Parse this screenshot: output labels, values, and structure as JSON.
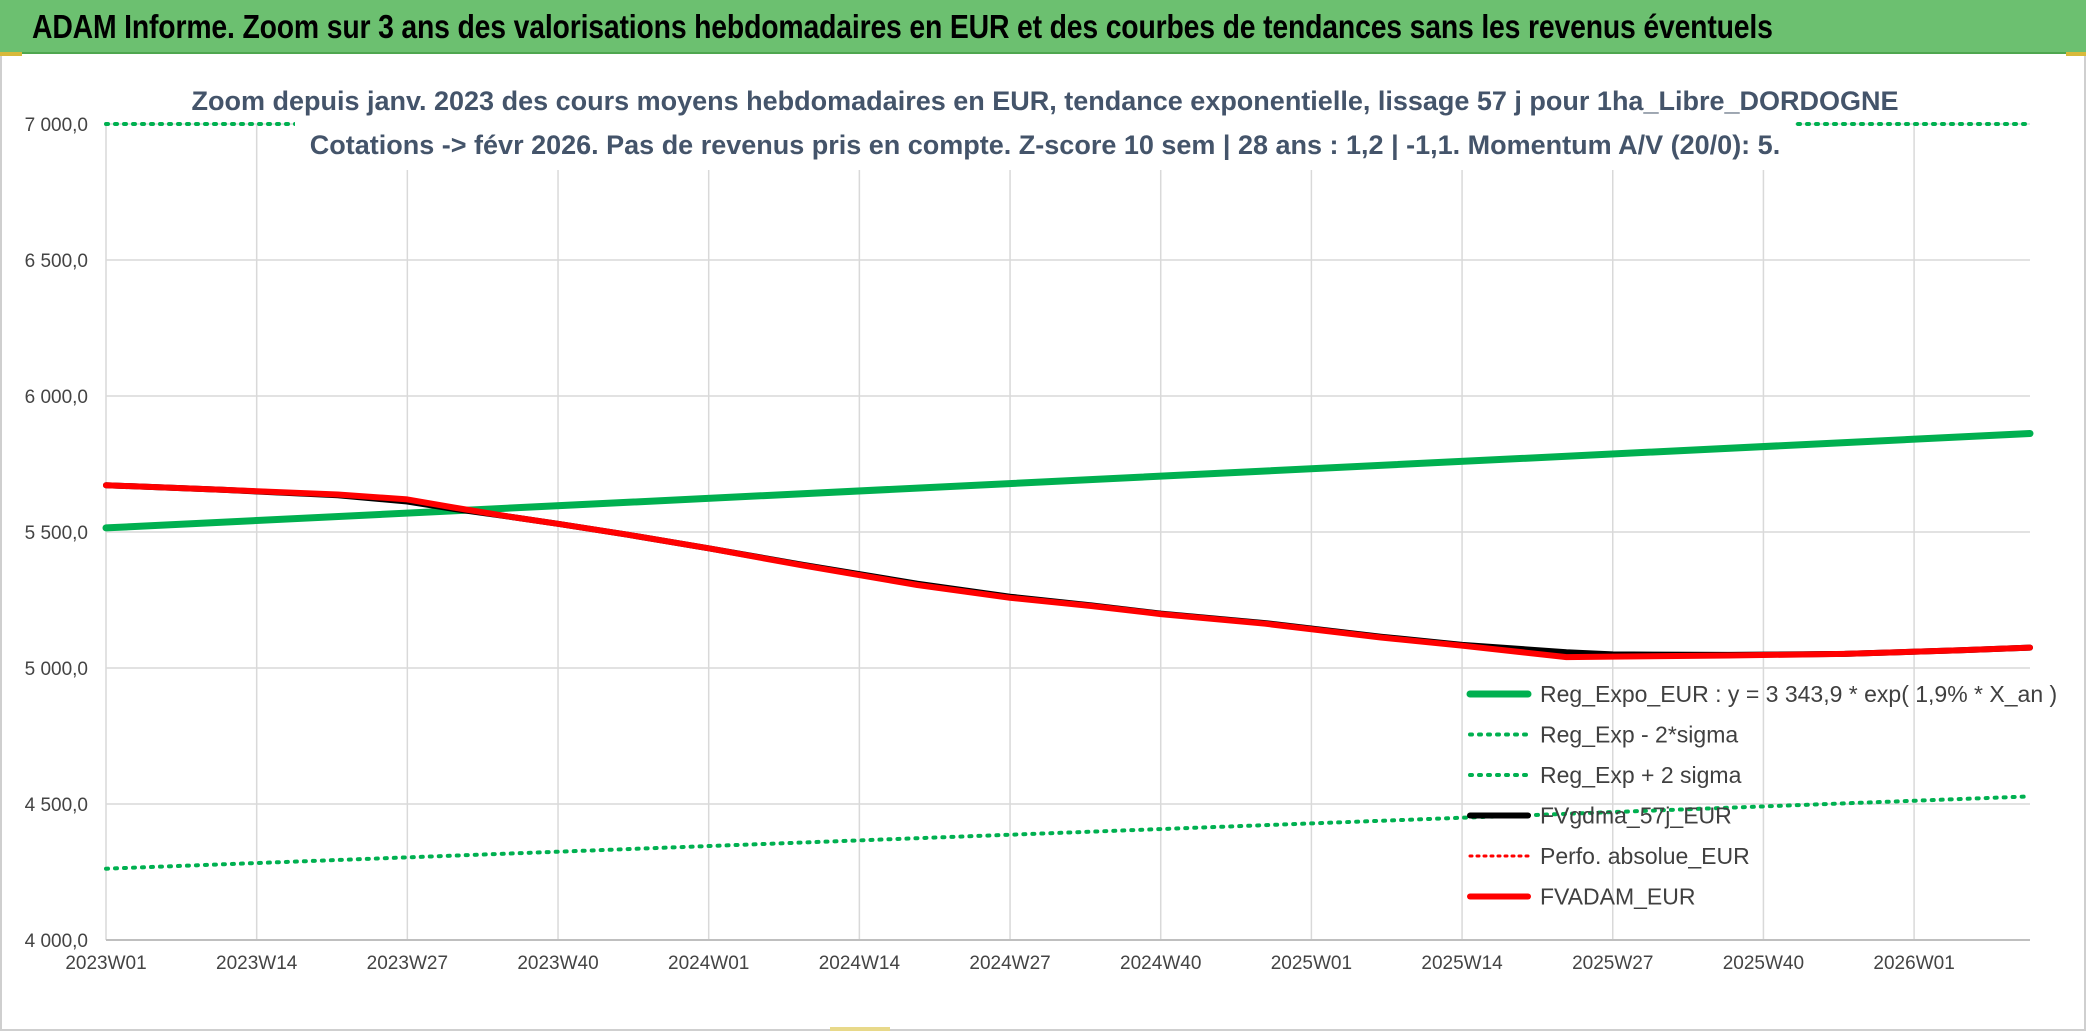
{
  "header": {
    "title": "ADAM Informe. Zoom sur 3 ans des valorisations hebdomadaires en EUR et des courbes de tendances sans les revenus éventuels"
  },
  "colors": {
    "header_bg": "#6cc070",
    "reg_expo": "#00b050",
    "sigma": "#00b050",
    "fvgdma": "#000000",
    "perfo": "#ff0000",
    "fvadam": "#ff0000",
    "grid": "#d9d9d9"
  },
  "chart_data": {
    "type": "line",
    "title_lines": [
      "Zoom depuis janv. 2023 des cours moyens hebdomadaires en EUR, tendance exponentielle, lissage 57 j pour 1ha_Libre_DORDOGNE",
      "Cotations -> févr 2026. Pas de revenus pris en compte. Z-score 10 sem | 28 ans : 1,2 | -1,1. Momentum A/V (20/0): 5."
    ],
    "ylim": [
      4000,
      7000
    ],
    "y_ticks": [
      4000,
      4500,
      5000,
      5500,
      6000,
      6500,
      7000
    ],
    "y_tick_labels": [
      "4 000,0",
      "4 500,0",
      "5 000,0",
      "5 500,0",
      "6 000,0",
      "6 500,0",
      "7 000,0"
    ],
    "x_range_weeks": [
      0,
      166
    ],
    "x_ticks": [
      0,
      13,
      26,
      39,
      52,
      65,
      78,
      91,
      104,
      117,
      130,
      143,
      156
    ],
    "x_tick_labels": [
      "2023W01",
      "2023W14",
      "2023W27",
      "2023W40",
      "2024W01",
      "2024W14",
      "2024W27",
      "2024W40",
      "2025W01",
      "2025W14",
      "2025W27",
      "2025W40",
      "2026W01"
    ],
    "series": [
      {
        "name": "Reg_Expo_EUR : y = 3 343,9 * exp( 1,9% *  X_an )",
        "style": "solid-thick",
        "x": [
          0,
          166
        ],
        "y": [
          5515,
          5862
        ]
      },
      {
        "name": "Reg_Exp - 2*sigma",
        "style": "dotted",
        "x": [
          0,
          166
        ],
        "y": [
          4262,
          4528
        ]
      },
      {
        "name": "Reg_Exp + 2 sigma",
        "style": "dotted",
        "x": [
          0,
          166
        ],
        "y": [
          7000,
          7000
        ]
      },
      {
        "name": "FVgdma_57j_EUR",
        "style": "solid-black",
        "x": [
          0,
          10,
          20,
          26,
          30,
          35,
          39,
          45,
          52,
          60,
          70,
          78,
          85,
          91,
          100,
          110,
          117,
          126,
          130,
          140,
          150,
          160,
          166
        ],
        "y": [
          5672,
          5655,
          5635,
          5612,
          5585,
          5555,
          5530,
          5490,
          5440,
          5380,
          5310,
          5262,
          5230,
          5200,
          5165,
          5115,
          5085,
          5058,
          5050,
          5048,
          5052,
          5065,
          5075
        ]
      },
      {
        "name": "Perfo. absolue_EUR",
        "style": "dotted-red",
        "x": [],
        "y": []
      },
      {
        "name": "FVADAM_EUR",
        "style": "solid-red",
        "x": [
          0,
          10,
          20,
          26,
          30,
          35,
          39,
          45,
          52,
          60,
          70,
          78,
          85,
          91,
          100,
          110,
          117,
          126,
          130,
          140,
          150,
          160,
          166
        ],
        "y": [
          5672,
          5655,
          5638,
          5620,
          5590,
          5555,
          5530,
          5490,
          5440,
          5378,
          5305,
          5258,
          5228,
          5198,
          5163,
          5112,
          5082,
          5040,
          5042,
          5046,
          5052,
          5065,
          5075
        ]
      }
    ],
    "legend_position": "bottom-right"
  }
}
